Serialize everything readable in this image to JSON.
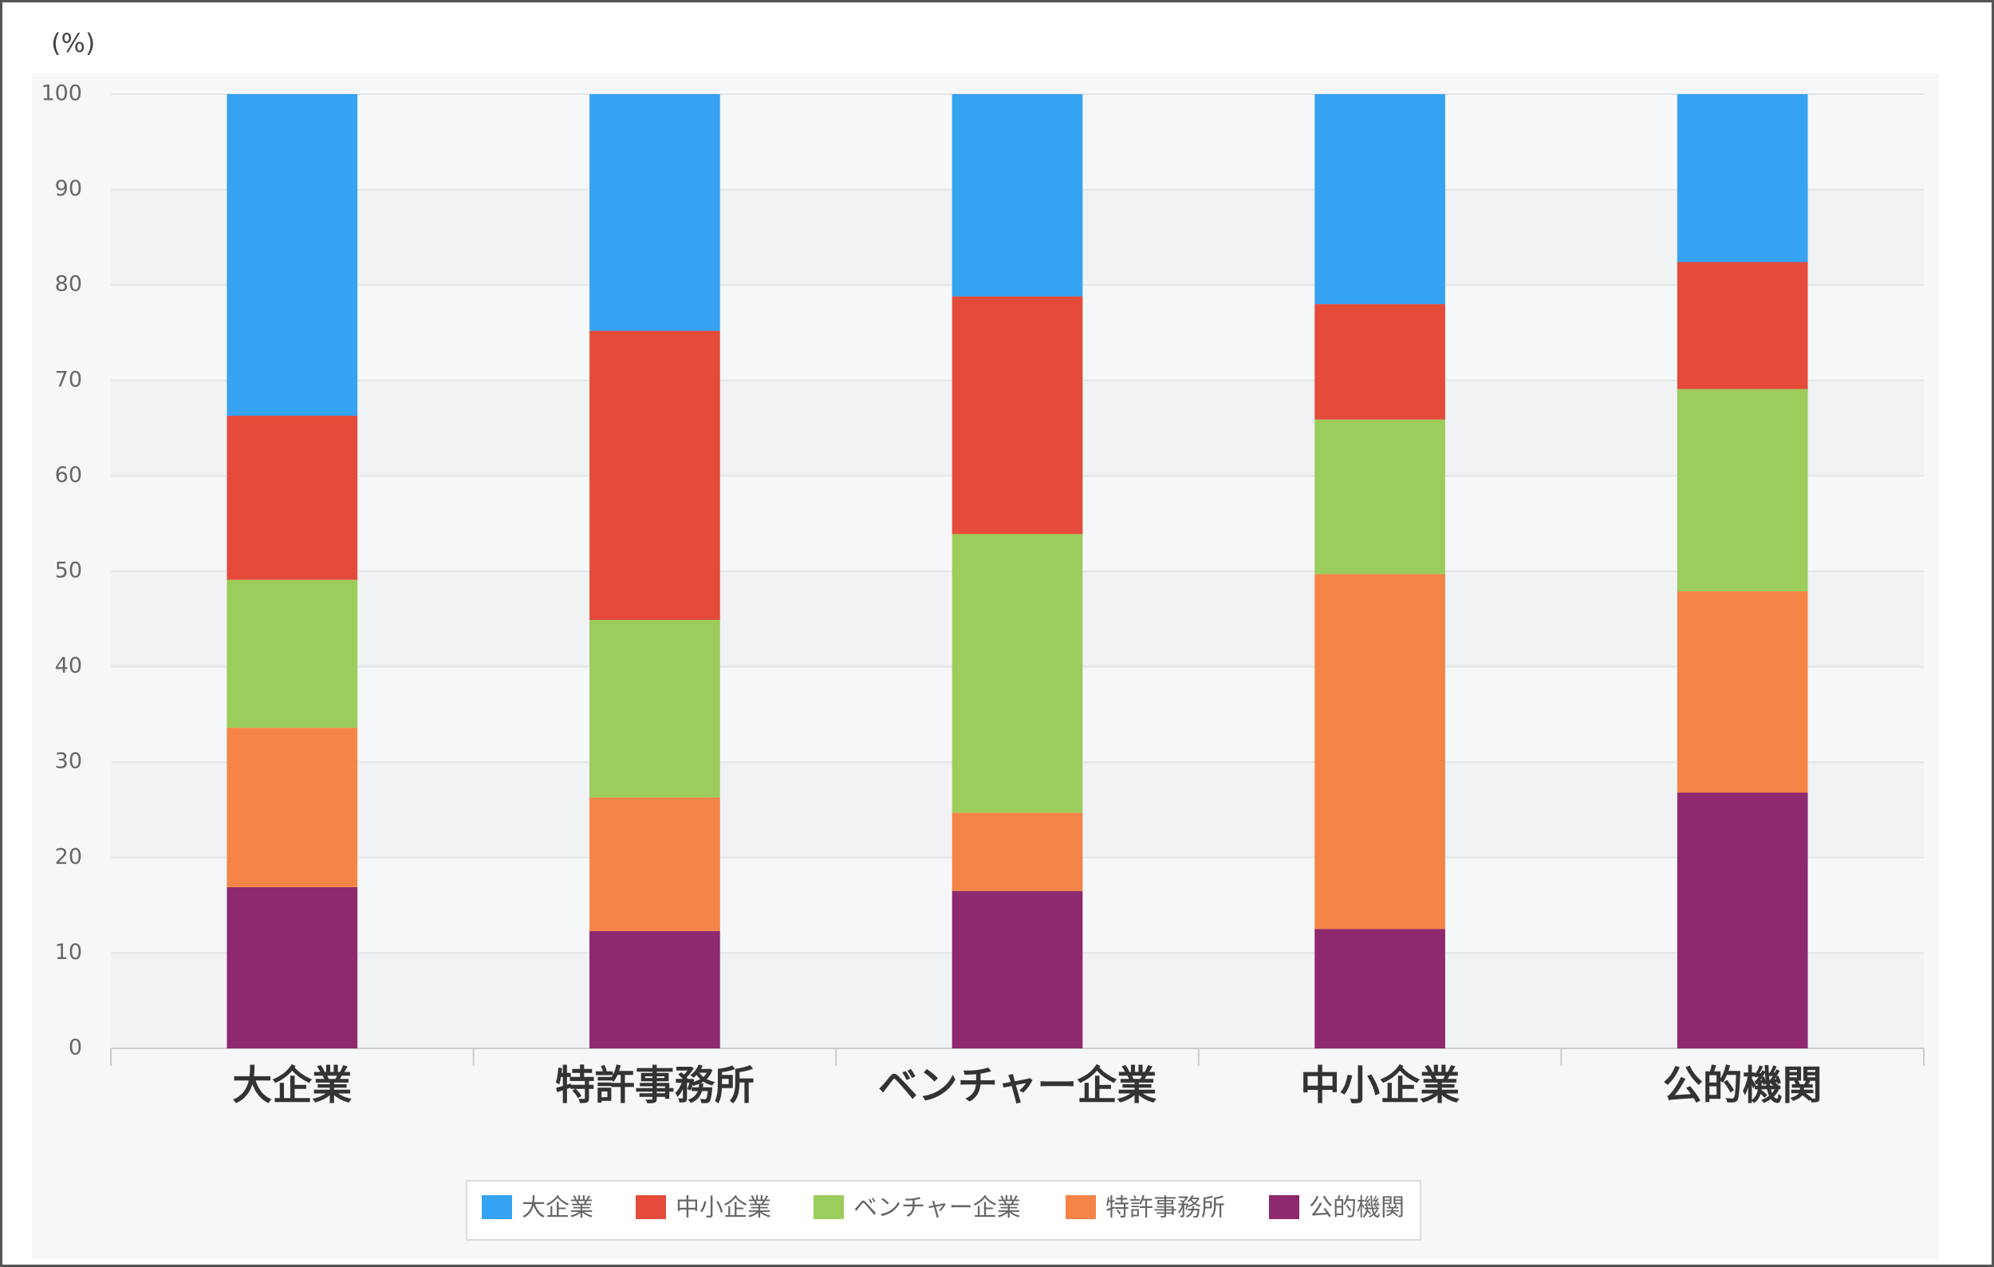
{
  "chart_data": {
    "type": "stacked_bar",
    "y_label": "(%)",
    "categories": [
      "大企業",
      "特許事務所",
      "ベンチャー企業",
      "中小企業",
      "公的機関"
    ],
    "series": [
      {
        "name": "大企業",
        "color": "#36a2f2",
        "values": [
          33.7,
          24.8,
          21.2,
          22.0,
          17.6
        ]
      },
      {
        "name": "中小企業",
        "color": "#e44b3a",
        "values": [
          17.2,
          30.3,
          24.9,
          12.1,
          13.3
        ]
      },
      {
        "name": "ベンチャー企業",
        "color": "#9ccc5c",
        "values": [
          15.5,
          18.6,
          29.2,
          16.2,
          21.2
        ]
      },
      {
        "name": "特許事務所",
        "color": "#f48447",
        "values": [
          16.7,
          14.0,
          8.2,
          37.2,
          21.1
        ]
      },
      {
        "name": "公的機関",
        "color": "#8e286f",
        "values": [
          16.9,
          12.3,
          16.5,
          12.5,
          26.8
        ]
      }
    ],
    "ylim": [
      0,
      100
    ],
    "yticks": [
      0,
      10,
      20,
      30,
      40,
      50,
      60,
      70,
      80,
      90,
      100
    ],
    "grid": true
  }
}
